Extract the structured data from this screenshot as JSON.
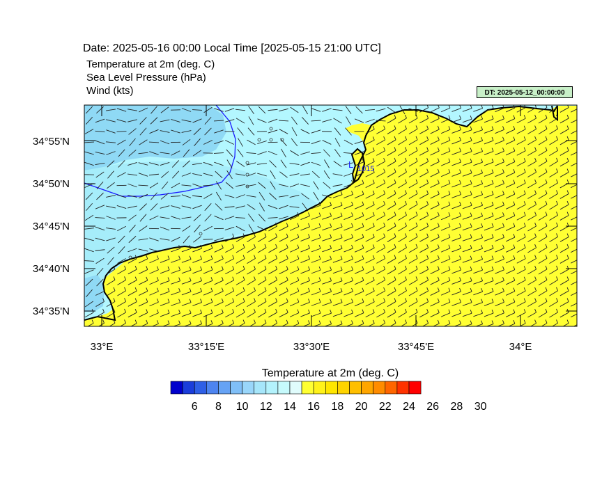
{
  "header": {
    "date_line": "Date: 2025-05-16  00:00 Local Time [2025-05-15  21:00 UTC]",
    "lines": [
      "Temperature at 2m   (deg. C)",
      "Sea Level Pressure   (hPa)",
      "Wind   (kts)"
    ],
    "dt_badge": "DT: 2025-05-12_00:00:00"
  },
  "map": {
    "lat_ticks": [
      "34°55'N",
      "34°50'N",
      "34°45'N",
      "34°40'N",
      "34°35'N"
    ],
    "lon_ticks": [
      "33°E",
      "33°15'E",
      "33°30'E",
      "33°45'E",
      "34°E"
    ],
    "isobar_label": "1015",
    "pressure_low_label": "L",
    "colors": {
      "land": "#ffff33",
      "sea_warm": "#b3f7ff",
      "sea_mid": "#a6edfa",
      "sea_cool": "#8fd9f5",
      "isobar": "#1a1aff",
      "coast": "#000000"
    }
  },
  "colorbar": {
    "title": "Temperature at 2m  (deg. C)",
    "labels": [
      "6",
      "8",
      "10",
      "12",
      "14",
      "16",
      "18",
      "20",
      "22",
      "24",
      "26",
      "28",
      "30"
    ],
    "colors": [
      "#0000cc",
      "#1a3ddb",
      "#2e5fe6",
      "#4d84f0",
      "#66a3f5",
      "#80bff7",
      "#99d6fa",
      "#a6e6fa",
      "#b3f2fc",
      "#c6fafc",
      "#e0fcfc",
      "#ffff33",
      "#fff21a",
      "#ffe600",
      "#ffd400",
      "#ffbf00",
      "#ffa600",
      "#ff8c00",
      "#ff6600",
      "#ff3300",
      "#ff0000"
    ]
  }
}
